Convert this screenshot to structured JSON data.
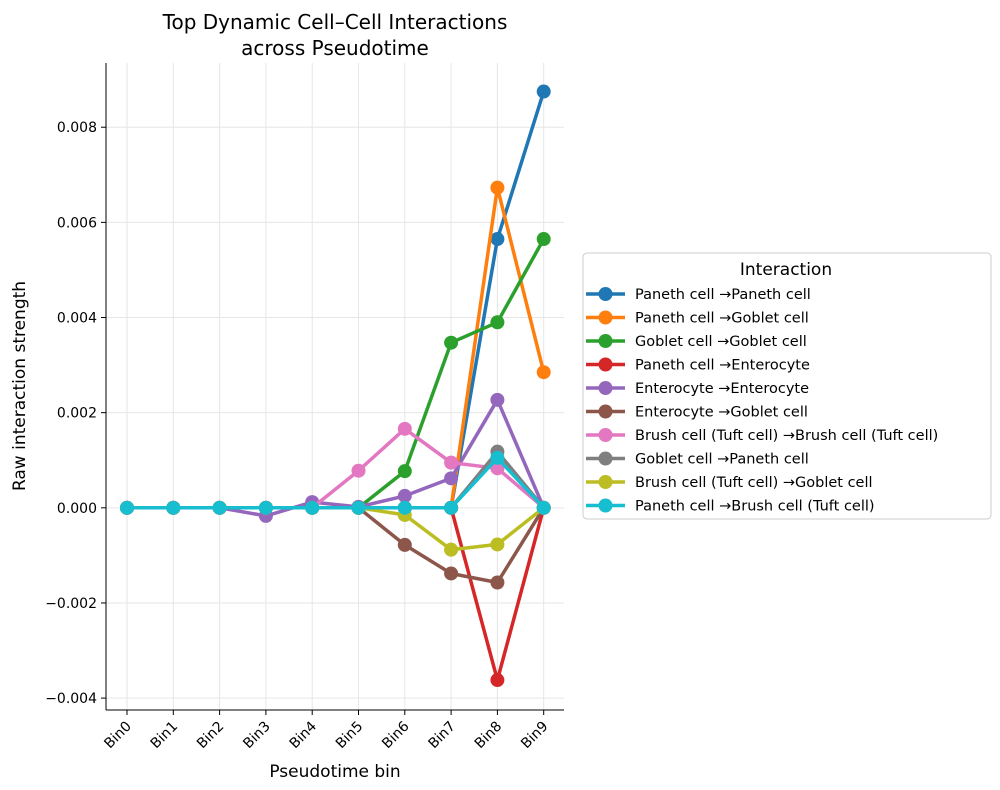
{
  "chart_data": {
    "type": "line",
    "title_lines": [
      "Top Dynamic Cell–Cell Interactions",
      "across Pseudotime"
    ],
    "xlabel": "Pseudotime bin",
    "ylabel": "Raw interaction strength",
    "categories": [
      "Bin0",
      "Bin1",
      "Bin2",
      "Bin3",
      "Bin4",
      "Bin5",
      "Bin6",
      "Bin7",
      "Bin8",
      "Bin9"
    ],
    "ylim": [
      -0.00425,
      0.00935
    ],
    "yticks": [
      -0.004,
      -0.002,
      0.0,
      0.002,
      0.004,
      0.006,
      0.008
    ],
    "ytick_labels": [
      "−0.004",
      "−0.002",
      "0.000",
      "0.002",
      "0.004",
      "0.006",
      "0.008"
    ],
    "grid": true,
    "legend": {
      "title": "Interaction",
      "placement": "right-outside"
    },
    "series": [
      {
        "name": "Paneth cell →Paneth cell",
        "color": "#1f77b4",
        "values": [
          0,
          0,
          0,
          0,
          0,
          0,
          0,
          0,
          0.00565,
          0.00875
        ]
      },
      {
        "name": "Paneth cell →Goblet cell",
        "color": "#ff7f0e",
        "values": [
          0,
          0,
          0,
          0,
          0,
          0,
          0,
          0,
          0.00673,
          0.00285
        ]
      },
      {
        "name": "Goblet cell →Goblet cell",
        "color": "#2ca02c",
        "values": [
          0,
          0,
          0,
          0,
          0,
          0,
          0.00077,
          0.00347,
          0.0039,
          0.00565
        ]
      },
      {
        "name": "Paneth cell →Enterocyte",
        "color": "#d62728",
        "values": [
          0,
          0,
          0,
          0,
          0,
          0,
          0,
          0,
          -0.00362,
          0
        ]
      },
      {
        "name": "Enterocyte →Enterocyte",
        "color": "#9467bd",
        "values": [
          0,
          0,
          0,
          -0.00017,
          0.00012,
          2e-05,
          0.00025,
          0.00062,
          0.00227,
          0
        ]
      },
      {
        "name": "Enterocyte →Goblet cell",
        "color": "#8c564b",
        "values": [
          0,
          0,
          0,
          0,
          0,
          0,
          -0.00078,
          -0.00138,
          -0.00157,
          0
        ]
      },
      {
        "name": "Brush cell (Tuft cell) →Brush cell (Tuft cell)",
        "color": "#e377c2",
        "values": [
          0,
          0,
          0,
          0,
          0,
          0.00078,
          0.00166,
          0.00095,
          0.00083,
          0
        ]
      },
      {
        "name": "Goblet cell →Paneth cell",
        "color": "#7f7f7f",
        "values": [
          0,
          0,
          0,
          0,
          0,
          0,
          0,
          0,
          0.00118,
          0
        ]
      },
      {
        "name": "Brush cell (Tuft cell) →Goblet cell",
        "color": "#bcbd22",
        "values": [
          0,
          0,
          0,
          0,
          0,
          0,
          -0.00015,
          -0.00088,
          -0.00077,
          0
        ]
      },
      {
        "name": "Paneth cell →Brush cell (Tuft cell)",
        "color": "#17becf",
        "values": [
          0,
          0,
          0,
          0,
          0,
          0,
          0,
          0,
          0.00105,
          0
        ]
      }
    ]
  }
}
